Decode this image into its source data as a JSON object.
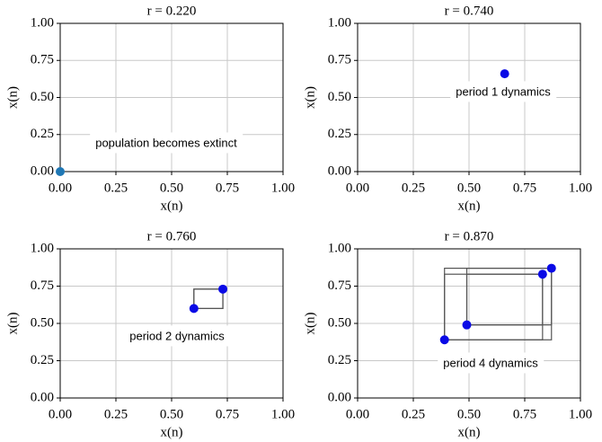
{
  "chart_data": [
    {
      "type": "scatter",
      "title": "r = 0.220",
      "x_label": "x(n)",
      "y_label": "x(n)",
      "annotation": "population becomes extinct",
      "x": [
        0.0
      ],
      "values": [
        0.0
      ],
      "color": "#1f77b4",
      "connect": false,
      "xlim": [
        0,
        1
      ],
      "ylim": [
        0,
        1
      ],
      "grid": true,
      "xticks": [
        {
          "value": 0,
          "label": "0.00"
        },
        {
          "value": 0.25,
          "label": "0.25"
        },
        {
          "value": 0.5,
          "label": "0.50"
        },
        {
          "value": 0.75,
          "label": "0.75"
        },
        {
          "value": 1,
          "label": "1.00"
        }
      ],
      "yticks": [
        {
          "value": 0,
          "label": "0.00"
        },
        {
          "value": 0.25,
          "label": "0.25"
        },
        {
          "value": 0.5,
          "label": "0.50"
        },
        {
          "value": 0.75,
          "label": "0.75"
        },
        {
          "value": 1,
          "label": "1.00"
        }
      ]
    },
    {
      "type": "scatter",
      "title": "r = 0.740",
      "x_label": "x(n)",
      "y_label": "x(n)",
      "annotation": "period 1 dynamics",
      "x": [
        0.66
      ],
      "values": [
        0.66
      ],
      "color": "#0a0ae6",
      "connect": false,
      "xlim": [
        0,
        1
      ],
      "ylim": [
        0,
        1
      ],
      "grid": true,
      "xticks": [
        {
          "value": 0,
          "label": "0.00"
        },
        {
          "value": 0.25,
          "label": "0.25"
        },
        {
          "value": 0.5,
          "label": "0.50"
        },
        {
          "value": 0.75,
          "label": "0.75"
        },
        {
          "value": 1,
          "label": "1.00"
        }
      ],
      "yticks": [
        {
          "value": 0,
          "label": "0.00"
        },
        {
          "value": 0.25,
          "label": "0.25"
        },
        {
          "value": 0.5,
          "label": "0.50"
        },
        {
          "value": 0.75,
          "label": "0.75"
        },
        {
          "value": 1,
          "label": "1.00"
        }
      ]
    },
    {
      "type": "scatter",
      "title": "r = 0.760",
      "x_label": "x(n)",
      "y_label": "x(n)",
      "annotation": "period 2 dynamics",
      "x": [
        0.6,
        0.73
      ],
      "values": [
        0.6,
        0.73
      ],
      "color": "#0a0ae6",
      "connect": true,
      "xlim": [
        0,
        1
      ],
      "ylim": [
        0,
        1
      ],
      "grid": true,
      "xticks": [
        {
          "value": 0,
          "label": "0.00"
        },
        {
          "value": 0.25,
          "label": "0.25"
        },
        {
          "value": 0.5,
          "label": "0.50"
        },
        {
          "value": 0.75,
          "label": "0.75"
        },
        {
          "value": 1,
          "label": "1.00"
        }
      ],
      "yticks": [
        {
          "value": 0,
          "label": "0.00"
        },
        {
          "value": 0.25,
          "label": "0.25"
        },
        {
          "value": 0.5,
          "label": "0.50"
        },
        {
          "value": 0.75,
          "label": "0.75"
        },
        {
          "value": 1,
          "label": "1.00"
        }
      ]
    },
    {
      "type": "scatter",
      "title": "r = 0.870",
      "x_label": "x(n)",
      "y_label": "x(n)",
      "annotation": "period 4 dynamics",
      "x": [
        0.39,
        0.83,
        0.49,
        0.87
      ],
      "values": [
        0.39,
        0.83,
        0.49,
        0.87
      ],
      "color": "#0a0ae6",
      "connect": true,
      "xlim": [
        0,
        1
      ],
      "ylim": [
        0,
        1
      ],
      "grid": true,
      "xticks": [
        {
          "value": 0,
          "label": "0.00"
        },
        {
          "value": 0.25,
          "label": "0.25"
        },
        {
          "value": 0.5,
          "label": "0.50"
        },
        {
          "value": 0.75,
          "label": "0.75"
        },
        {
          "value": 1,
          "label": "1.00"
        }
      ],
      "yticks": [
        {
          "value": 0,
          "label": "0.00"
        },
        {
          "value": 0.25,
          "label": "0.25"
        },
        {
          "value": 0.5,
          "label": "0.50"
        },
        {
          "value": 0.75,
          "label": "0.75"
        },
        {
          "value": 1,
          "label": "1.00"
        }
      ]
    }
  ]
}
